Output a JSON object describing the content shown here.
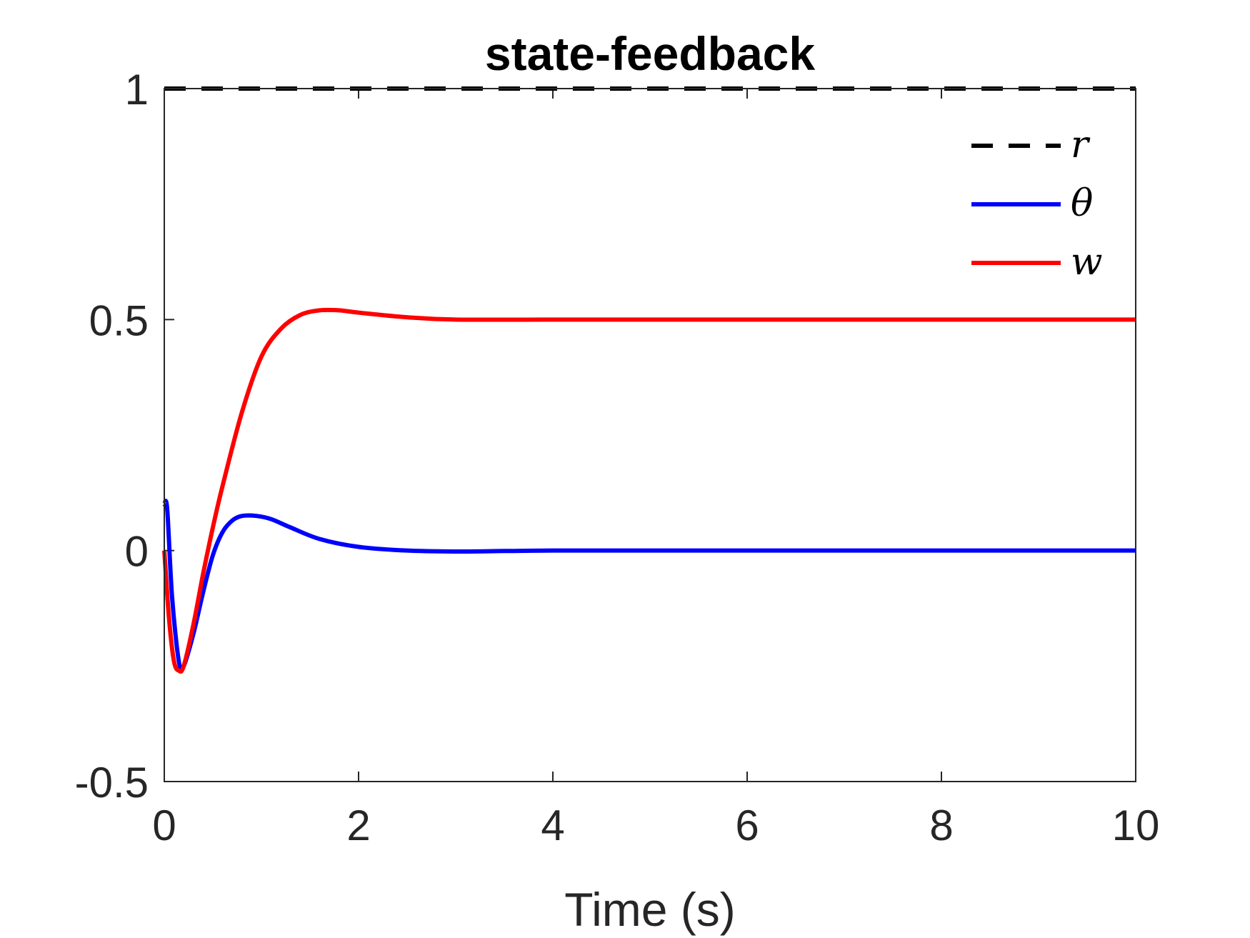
{
  "chart_data": {
    "type": "line",
    "title": "state-feedback",
    "xlabel": "Time (s)",
    "ylabel": "",
    "xlim": [
      0,
      10
    ],
    "ylim": [
      -0.5,
      1
    ],
    "xticks": [
      0,
      2,
      4,
      6,
      8,
      10
    ],
    "xtick_labels": [
      "0",
      "2",
      "4",
      "6",
      "8",
      "10"
    ],
    "yticks": [
      -0.5,
      0,
      0.5,
      1
    ],
    "ytick_labels": [
      "-0.5",
      "0",
      "0.5",
      "1"
    ],
    "grid": false,
    "legend_position": "top-right",
    "series": [
      {
        "name": "r",
        "color": "#000000",
        "style": "dashed",
        "x": [
          0,
          10
        ],
        "y": [
          1,
          1
        ]
      },
      {
        "name": "θ",
        "color": "#0000ff",
        "style": "solid",
        "x": [
          0,
          0.03,
          0.08,
          0.15,
          0.2,
          0.3,
          0.4,
          0.5,
          0.6,
          0.7,
          0.8,
          0.95,
          1.1,
          1.3,
          1.6,
          2.0,
          2.5,
          3.0,
          3.5,
          4.0,
          5.0,
          6.0,
          8.0,
          10.0
        ],
        "y": [
          0.1,
          0.09,
          -0.1,
          -0.24,
          -0.25,
          -0.18,
          -0.09,
          -0.01,
          0.04,
          0.065,
          0.075,
          0.075,
          0.068,
          0.05,
          0.025,
          0.008,
          0.0,
          -0.002,
          -0.001,
          0.0,
          0.0,
          0.0,
          0.0,
          0.0
        ]
      },
      {
        "name": "w",
        "color": "#ff0000",
        "style": "solid",
        "x": [
          0,
          0.05,
          0.1,
          0.15,
          0.2,
          0.3,
          0.4,
          0.5,
          0.6,
          0.8,
          1.0,
          1.2,
          1.4,
          1.6,
          1.8,
          2.0,
          2.5,
          3.0,
          4.0,
          5.0,
          6.0,
          8.0,
          10.0
        ],
        "y": [
          0,
          -0.15,
          -0.24,
          -0.26,
          -0.25,
          -0.16,
          -0.05,
          0.05,
          0.14,
          0.3,
          0.42,
          0.48,
          0.51,
          0.52,
          0.52,
          0.515,
          0.505,
          0.5,
          0.5,
          0.5,
          0.5,
          0.5,
          0.5
        ]
      }
    ]
  }
}
